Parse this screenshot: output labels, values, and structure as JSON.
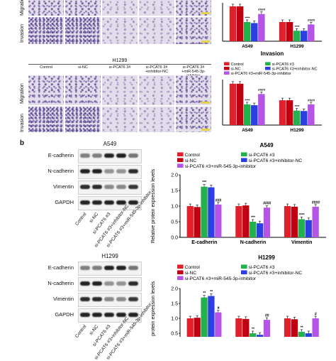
{
  "panel_b_letter": "b",
  "row_labels": {
    "migration": "Migration",
    "invasion": "Invasion"
  },
  "h1299_title": "H1299",
  "group_headers": [
    "Control",
    "si-NC",
    "si-PCAT6 3#",
    "si-PCAT6 3#\n+inhibitor-NC",
    "si-PCAT6 3#\n+miR-545-3p-inhibitor"
  ],
  "top_chart_xlabel": "Invasion",
  "legend": {
    "items": [
      {
        "label": "Control",
        "color": "#e0202a"
      },
      {
        "label": "si-PCAT6 #3",
        "color": "#22b14c"
      },
      {
        "label": "si-NC",
        "color": "#c00010"
      },
      {
        "label": "si-PCAT6 #3+inhibitor-NC",
        "color": "#2c3fe0"
      },
      {
        "label": "si-PCAT6 #3+miR-545-3p-inhibitor",
        "color": "#b455e6"
      }
    ]
  },
  "wb_labels": [
    "E-cadherin",
    "N-cadherin",
    "Vimentin",
    "GAPDH"
  ],
  "wb_lane_labels": [
    "Control",
    "si-NC",
    "si-PCAT6 #3",
    "si-PCAT6 #3+inhibitor-NC",
    "si-PCAT6 #3+miR-545-3p-inhibitor"
  ],
  "wb_a549_title": "A549",
  "wb_h1299_title": "H1299",
  "chart_data": [
    {
      "type": "bar",
      "title": "",
      "xlabel": "Invasion",
      "categories": [
        "A549",
        "H1299"
      ],
      "series": [
        {
          "name": "Control",
          "values": [
            1.0,
            0.55
          ]
        },
        {
          "name": "si-NC",
          "values": [
            1.0,
            0.55
          ]
        },
        {
          "name": "si-PCAT6 #3",
          "values": [
            0.55,
            0.3
          ]
        },
        {
          "name": "si-PCAT6 #3+inhibitor-NC",
          "values": [
            0.52,
            0.3
          ]
        },
        {
          "name": "si-PCAT6 #3+miR-545-3p-inhibitor",
          "values": [
            0.78,
            0.48
          ]
        }
      ],
      "annotations": [
        {
          "category": "A549",
          "series": "si-PCAT6 #3",
          "text": "****"
        },
        {
          "category": "A549",
          "series": "si-PCAT6 #3+miR-545-3p-inhibitor",
          "text": "####"
        },
        {
          "category": "H1299",
          "series": "si-PCAT6 #3",
          "text": "****"
        },
        {
          "category": "H1299",
          "series": "si-PCAT6 #3+miR-545-3p-inhibitor",
          "text": "####"
        }
      ],
      "ylim": [
        0,
        1.1
      ]
    },
    {
      "type": "bar",
      "title": "",
      "xlabel": "",
      "categories": [
        "A549",
        "H1299"
      ],
      "series": [
        {
          "name": "Control",
          "values": [
            1.0,
            0.6
          ]
        },
        {
          "name": "si-NC",
          "values": [
            1.0,
            0.6
          ]
        },
        {
          "name": "si-PCAT6 #3",
          "values": [
            0.5,
            0.35
          ]
        },
        {
          "name": "si-PCAT6 #3+inhibitor-NC",
          "values": [
            0.48,
            0.34
          ]
        },
        {
          "name": "si-PCAT6 #3+miR-545-3p-inhibitor",
          "values": [
            0.75,
            0.5
          ]
        }
      ],
      "annotations": [
        {
          "category": "A549",
          "series": "si-PCAT6 #3",
          "text": "****"
        },
        {
          "category": "A549",
          "series": "si-PCAT6 #3+miR-545-3p-inhibitor",
          "text": "####"
        },
        {
          "category": "H1299",
          "series": "si-PCAT6 #3",
          "text": "****"
        },
        {
          "category": "H1299",
          "series": "si-PCAT6 #3+miR-545-3p-inhibitor",
          "text": "####"
        }
      ],
      "ylim": [
        0,
        1.1
      ]
    },
    {
      "type": "bar",
      "title": "A549",
      "ylabel": "Relative protein expression levels",
      "categories": [
        "E-cadherin",
        "N-cadherin",
        "Vimentin"
      ],
      "series": [
        {
          "name": "Control",
          "values": [
            1.0,
            1.0,
            1.0
          ]
        },
        {
          "name": "si-NC",
          "values": [
            0.97,
            1.02,
            0.98
          ]
        },
        {
          "name": "si-PCAT6 #3",
          "values": [
            1.62,
            0.5,
            0.58
          ]
        },
        {
          "name": "si-PCAT6 #3+inhibitor-NC",
          "values": [
            1.6,
            0.45,
            0.55
          ]
        },
        {
          "name": "si-PCAT6 #3+miR-545-3p-inhibitor",
          "values": [
            1.05,
            0.95,
            0.98
          ]
        }
      ],
      "annotations": [
        {
          "category": "E-cadherin",
          "series": "si-PCAT6 #3",
          "text": "***"
        },
        {
          "category": "E-cadherin",
          "series": "si-PCAT6 #3+miR-545-3p-inhibitor",
          "text": "###"
        },
        {
          "category": "N-cadherin",
          "series": "si-PCAT6 #3",
          "text": "***"
        },
        {
          "category": "N-cadherin",
          "series": "si-PCAT6 #3+miR-545-3p-inhibitor",
          "text": "####"
        },
        {
          "category": "Vimentin",
          "series": "si-PCAT6 #3",
          "text": "****"
        },
        {
          "category": "Vimentin",
          "series": "si-PCAT6 #3+miR-545-3p-inhibitor",
          "text": "####"
        }
      ],
      "ylim": [
        0.0,
        2.0
      ],
      "yticks": [
        "0.0",
        "0.5",
        "1.0",
        "1.5",
        "2.0"
      ]
    },
    {
      "type": "bar",
      "title": "H1299",
      "ylabel": "Relative protein expression levels",
      "categories": [
        "E-cadherin",
        "N-cadherin",
        "Vimentin"
      ],
      "series": [
        {
          "name": "Control",
          "values": [
            1.0,
            1.0,
            1.0
          ]
        },
        {
          "name": "si-NC",
          "values": [
            1.02,
            0.98,
            0.97
          ]
        },
        {
          "name": "si-PCAT6 #3",
          "values": [
            1.7,
            0.5,
            0.55
          ]
        },
        {
          "name": "si-PCAT6 #3+inhibitor-NC",
          "values": [
            1.75,
            0.45,
            0.5
          ]
        },
        {
          "name": "si-PCAT6 #3+miR-545-3p-inhibitor",
          "values": [
            1.2,
            0.95,
            1.0
          ]
        }
      ],
      "annotations": [
        {
          "category": "E-cadherin",
          "series": "si-PCAT6 #3",
          "text": "**"
        },
        {
          "category": "E-cadherin",
          "series": "si-PCAT6 #3+inhibitor-NC",
          "text": "**"
        },
        {
          "category": "E-cadherin",
          "series": "si-PCAT6 #3+miR-545-3p-inhibitor",
          "text": "#"
        },
        {
          "category": "N-cadherin",
          "series": "si-PCAT6 #3",
          "text": "**"
        },
        {
          "category": "N-cadherin",
          "series": "si-PCAT6 #3+miR-545-3p-inhibitor",
          "text": "##"
        },
        {
          "category": "Vimentin",
          "series": "si-PCAT6 #3",
          "text": "**"
        },
        {
          "category": "Vimentin",
          "series": "si-PCAT6 #3+miR-545-3p-inhibitor",
          "text": "#"
        }
      ],
      "ylim": [
        0.0,
        2.0
      ],
      "yticks": [
        "0.0",
        "0.5",
        "1.0",
        "1.5",
        "2.0"
      ]
    }
  ]
}
